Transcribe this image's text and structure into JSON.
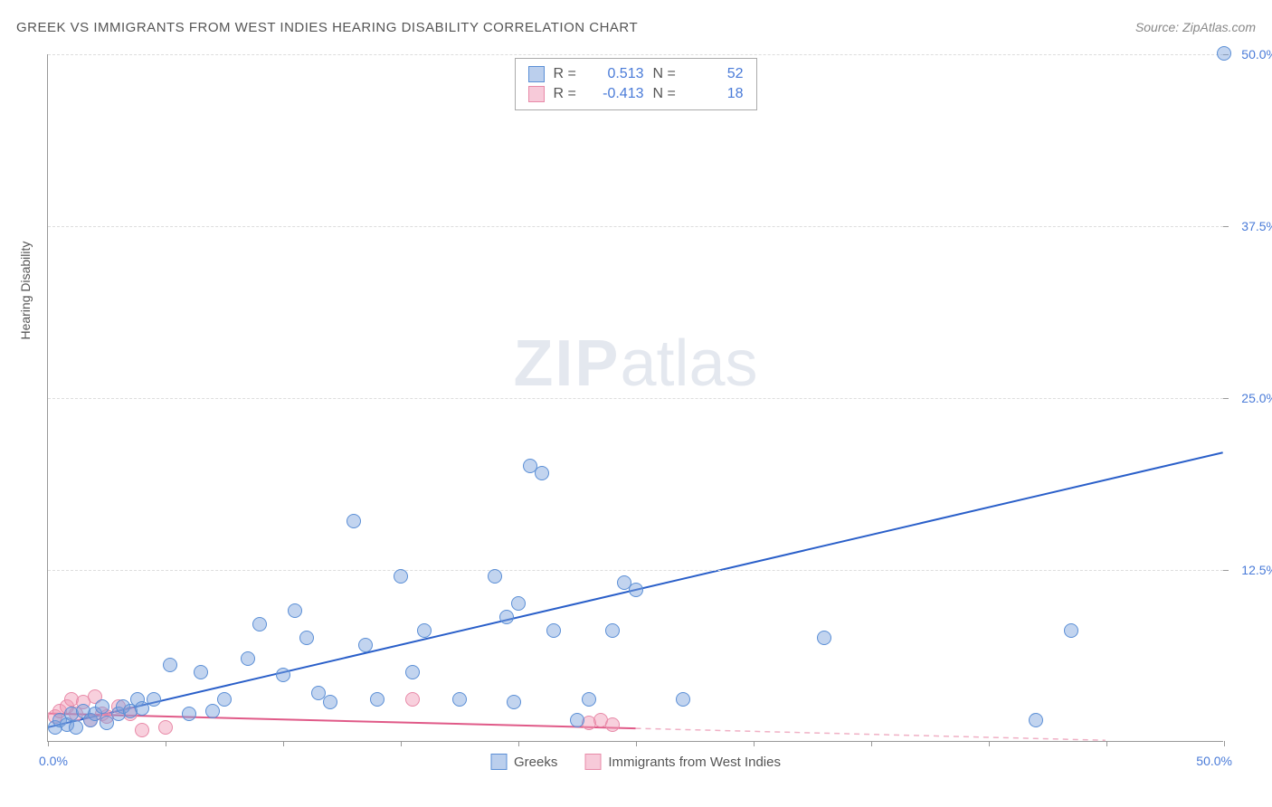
{
  "title": "GREEK VS IMMIGRANTS FROM WEST INDIES HEARING DISABILITY CORRELATION CHART",
  "source": "Source: ZipAtlas.com",
  "ylabel": "Hearing Disability",
  "watermark_bold": "ZIP",
  "watermark_light": "atlas",
  "chart": {
    "type": "scatter",
    "xlim": [
      0,
      50
    ],
    "ylim": [
      0,
      50
    ],
    "x_origin_label": "0.0%",
    "x_max_label": "50.0%",
    "ytick_values": [
      12.5,
      25.0,
      37.5,
      50.0
    ],
    "ytick_labels": [
      "12.5%",
      "25.0%",
      "37.5%",
      "50.0%"
    ],
    "xtick_values": [
      0,
      5,
      10,
      15,
      20,
      25,
      30,
      35,
      40,
      45,
      50
    ],
    "grid_color": "#dddddd",
    "background_color": "#ffffff",
    "axis_color": "#999999"
  },
  "series": {
    "blue": {
      "label": "Greeks",
      "color_fill": "rgba(120,160,220,0.45)",
      "color_stroke": "#5b8fd6",
      "R_label": "R =",
      "R_value": "0.513",
      "N_label": "N =",
      "N_value": "52",
      "trend": {
        "x1": 0,
        "y1": 1.0,
        "x2": 50,
        "y2": 21.0,
        "color": "#2a5fc9",
        "width": 2,
        "dash_after_x": 50
      },
      "points": [
        [
          0.3,
          1.0
        ],
        [
          0.5,
          1.5
        ],
        [
          0.8,
          1.2
        ],
        [
          1.0,
          2.0
        ],
        [
          1.2,
          1.0
        ],
        [
          1.5,
          2.2
        ],
        [
          1.8,
          1.5
        ],
        [
          2.0,
          2.0
        ],
        [
          2.3,
          2.5
        ],
        [
          2.5,
          1.3
        ],
        [
          3.0,
          2.0
        ],
        [
          3.2,
          2.5
        ],
        [
          3.5,
          2.2
        ],
        [
          3.8,
          3.0
        ],
        [
          4.0,
          2.4
        ],
        [
          4.5,
          3.0
        ],
        [
          5.2,
          5.5
        ],
        [
          6.5,
          5.0
        ],
        [
          7.5,
          3.0
        ],
        [
          8.5,
          6.0
        ],
        [
          9.0,
          8.5
        ],
        [
          10.0,
          4.8
        ],
        [
          10.5,
          9.5
        ],
        [
          11.0,
          7.5
        ],
        [
          11.5,
          3.5
        ],
        [
          12.0,
          2.8
        ],
        [
          13.0,
          16.0
        ],
        [
          13.5,
          7.0
        ],
        [
          14.0,
          3.0
        ],
        [
          15.0,
          12.0
        ],
        [
          15.5,
          5.0
        ],
        [
          16.0,
          8.0
        ],
        [
          17.5,
          3.0
        ],
        [
          19.0,
          12.0
        ],
        [
          19.5,
          9.0
        ],
        [
          19.8,
          2.8
        ],
        [
          20.0,
          10.0
        ],
        [
          20.5,
          20.0
        ],
        [
          21.0,
          19.5
        ],
        [
          21.5,
          8.0
        ],
        [
          22.5,
          1.5
        ],
        [
          23.0,
          3.0
        ],
        [
          24.0,
          8.0
        ],
        [
          24.5,
          11.5
        ],
        [
          25.0,
          11.0
        ],
        [
          27.0,
          3.0
        ],
        [
          33.0,
          7.5
        ],
        [
          42.0,
          1.5
        ],
        [
          43.5,
          8.0
        ],
        [
          50.0,
          50.0
        ],
        [
          6.0,
          2.0
        ],
        [
          7.0,
          2.2
        ]
      ]
    },
    "pink": {
      "label": "Immigants from West Indies",
      "label_display": "Immigrants from West Indies",
      "color_fill": "rgba(240,150,180,0.45)",
      "color_stroke": "#e88aa8",
      "R_label": "R =",
      "R_value": "-0.413",
      "N_label": "N =",
      "N_value": "18",
      "trend": {
        "x1": 0,
        "y1": 2.0,
        "x2": 30,
        "y2": 0.7,
        "color": "#e05a88",
        "width": 2,
        "dash_after_x": 25
      },
      "points": [
        [
          0.3,
          1.8
        ],
        [
          0.5,
          2.2
        ],
        [
          0.8,
          2.5
        ],
        [
          1.0,
          3.0
        ],
        [
          1.2,
          2.0
        ],
        [
          1.5,
          2.8
        ],
        [
          1.8,
          1.5
        ],
        [
          2.0,
          3.2
        ],
        [
          2.3,
          2.0
        ],
        [
          2.5,
          1.8
        ],
        [
          3.0,
          2.5
        ],
        [
          3.5,
          2.0
        ],
        [
          4.0,
          0.8
        ],
        [
          15.5,
          3.0
        ],
        [
          23.0,
          1.3
        ],
        [
          23.5,
          1.5
        ],
        [
          24.0,
          1.2
        ],
        [
          5.0,
          1.0
        ]
      ]
    }
  }
}
